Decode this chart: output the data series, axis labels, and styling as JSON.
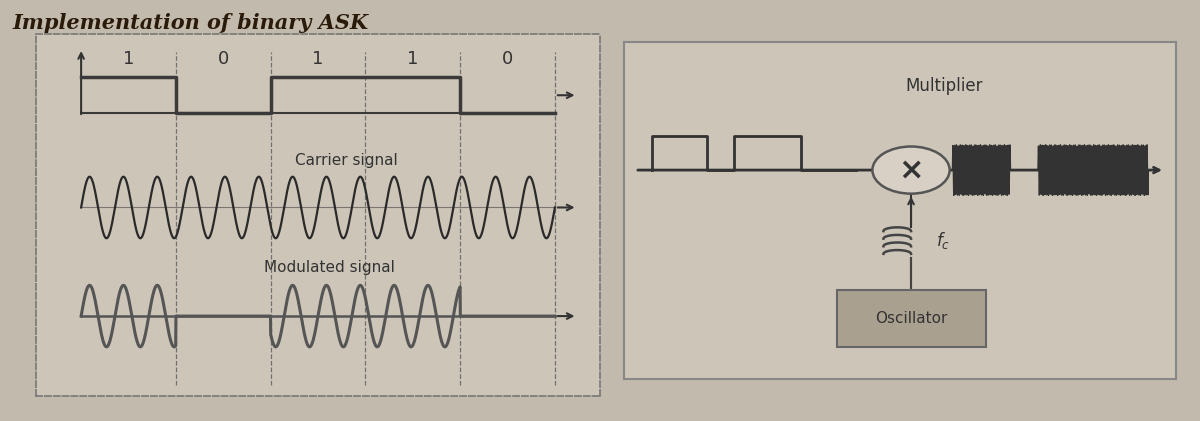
{
  "title": "Implementation of binary ASK",
  "title_fontsize": 15,
  "title_fontweight": "bold",
  "background_color": "#cdc5b8",
  "fig_bg": "#c2baac",
  "bits": [
    1,
    0,
    1,
    1,
    0
  ],
  "signal_color": "#3a3a3a",
  "carrier_color": "#2a2a2a",
  "modulated_color": "#4a4a4a",
  "dashed_color": "#555555",
  "carrier_freq": 14,
  "arrow_color": "#333333",
  "right_panel_bg": "#cdc5b8",
  "right_panel_border": "#555555",
  "oscillator_box_color": "#aaa090",
  "multiplier_circle_color": "#d8d0c4",
  "fc_label": "$f_c$",
  "multiplier_label": "Multiplier",
  "oscillator_label": "Oscillator",
  "carrier_label": "Carrier signal",
  "modulated_label": "Modulated signal"
}
